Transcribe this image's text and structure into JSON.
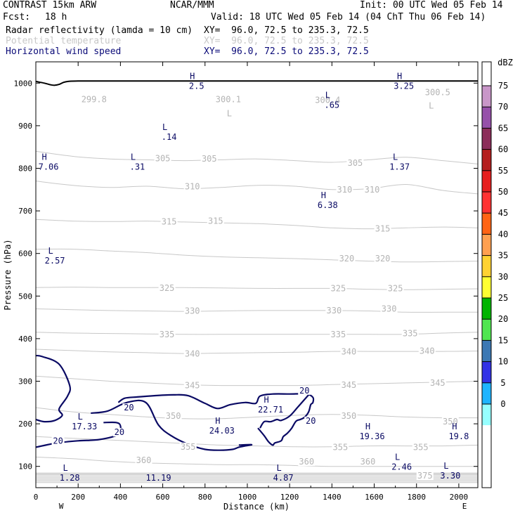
{
  "header": {
    "model": "CONTRAST 15km ARW",
    "center": "NCAR/MMM",
    "init": "Init: 00 UTC Wed 05 Feb 14",
    "fcst_label": "Fcst:",
    "fcst_value": "18 h",
    "valid": "Valid: 18 UTC Wed 05 Feb 14 (04 ChT Thu 06 Feb 14)",
    "fields": [
      {
        "name": "Radar reflectivity (lamda = 10 cm)",
        "xy": "XY=  96.0, 72.5 to 235.3, 72.5",
        "color": "#000000"
      },
      {
        "name": "Potential temperature",
        "xy": "XY=  96.0, 72.5 to 235.3, 72.5",
        "color": "#c8c8c8"
      },
      {
        "name": "Horizontal wind speed",
        "xy": "XY=  96.0, 72.5 to 235.3, 72.5",
        "color": "#0a0a78"
      }
    ]
  },
  "chart_data": {
    "type": "cross-section",
    "xlabel": "Distance (km)",
    "ylabel": "Pressure (hPa)",
    "xlim": [
      0,
      2090
    ],
    "ylim": [
      1050,
      50
    ],
    "x_ticks": [
      "0",
      "200",
      "400",
      "600",
      "800",
      "1000",
      "1200",
      "1400",
      "1600",
      "1800",
      "2000"
    ],
    "y_ticks": [
      "100",
      "200",
      "300",
      "400",
      "500",
      "600",
      "700",
      "800",
      "900",
      "1000"
    ],
    "endpoints": [
      "W",
      "E"
    ],
    "theta_contours": [
      {
        "theta": 305,
        "p": [
          840,
          828,
          822,
          820,
          818,
          820,
          822,
          818,
          814,
          820,
          826,
          818,
          810
        ]
      },
      {
        "theta": 310,
        "p": [
          770,
          760,
          755,
          758,
          752,
          755,
          760,
          758,
          750,
          752,
          762,
          748,
          740
        ]
      },
      {
        "theta": 315,
        "p": [
          680,
          676,
          675,
          676,
          674,
          672,
          670,
          666,
          660,
          658,
          660,
          662,
          660
        ]
      },
      {
        "theta": 320,
        "p": [
          610,
          610,
          606,
          602,
          596,
          592,
          590,
          588,
          585,
          582,
          580,
          581,
          582
        ]
      },
      {
        "theta": 325,
        "p": [
          520,
          521,
          520,
          520,
          520,
          519,
          518,
          518,
          518,
          516,
          515,
          516,
          517
        ]
      },
      {
        "theta": 330,
        "p": [
          470,
          468,
          466,
          465,
          464,
          465,
          466,
          466,
          466,
          465,
          462,
          462,
          462
        ]
      },
      {
        "theta": 335,
        "p": [
          415,
          413,
          412,
          411,
          410,
          410,
          410,
          410,
          410,
          410,
          410,
          413,
          415
        ]
      },
      {
        "theta": 340,
        "p": [
          375,
          372,
          369,
          367,
          365,
          366,
          367,
          368,
          370,
          370,
          370,
          370,
          371
        ]
      },
      {
        "theta": 345,
        "p": [
          312,
          306,
          300,
          296,
          292,
          290,
          290,
          290,
          292,
          294,
          296,
          298,
          300
        ]
      },
      {
        "theta": 350,
        "p": [
          238,
          228,
          222,
          216,
          212,
          212,
          216,
          220,
          222,
          220,
          216,
          214,
          214
        ]
      },
      {
        "theta": 355,
        "p": [
          170,
          166,
          162,
          158,
          154,
          150,
          148,
          146,
          146,
          148,
          148,
          148,
          150
        ]
      },
      {
        "theta": 360,
        "p": [
          122,
          118,
          112,
          108,
          106,
          104,
          104,
          102,
          100,
          100,
          100,
          100,
          100
        ]
      },
      {
        "theta": 375,
        "p": [
          82,
          82,
          82,
          82,
          82,
          82,
          82,
          82,
          82,
          82,
          82,
          82,
          82
        ]
      }
    ],
    "theta_contour_x": [
      0,
      175,
      350,
      525,
      700,
      875,
      1050,
      1225,
      1400,
      1575,
      1750,
      1925,
      2090
    ],
    "theta_labels": [
      {
        "text": "375",
        "x": 1840,
        "y": 78
      },
      {
        "text": "360",
        "x": 510,
        "y": 114
      },
      {
        "text": "360",
        "x": 1280,
        "y": 111
      },
      {
        "text": "360",
        "x": 1570,
        "y": 111
      },
      {
        "text": "355",
        "x": 720,
        "y": 146
      },
      {
        "text": "355",
        "x": 1440,
        "y": 145
      },
      {
        "text": "355",
        "x": 1820,
        "y": 145
      },
      {
        "text": "350",
        "x": 650,
        "y": 218
      },
      {
        "text": "350",
        "x": 1480,
        "y": 218
      },
      {
        "text": "350",
        "x": 1960,
        "y": 205
      },
      {
        "text": "345",
        "x": 740,
        "y": 290
      },
      {
        "text": "345",
        "x": 1480,
        "y": 291
      },
      {
        "text": "345",
        "x": 1900,
        "y": 296
      },
      {
        "text": "340",
        "x": 740,
        "y": 364
      },
      {
        "text": "340",
        "x": 1480,
        "y": 369
      },
      {
        "text": "340",
        "x": 1850,
        "y": 371
      },
      {
        "text": "335",
        "x": 620,
        "y": 410
      },
      {
        "text": "335",
        "x": 1430,
        "y": 410
      },
      {
        "text": "335",
        "x": 1770,
        "y": 412
      },
      {
        "text": "330",
        "x": 740,
        "y": 465
      },
      {
        "text": "330",
        "x": 1410,
        "y": 466
      },
      {
        "text": "330",
        "x": 1670,
        "y": 470
      },
      {
        "text": "325",
        "x": 620,
        "y": 519
      },
      {
        "text": "325",
        "x": 1430,
        "y": 518
      },
      {
        "text": "325",
        "x": 1700,
        "y": 518
      },
      {
        "text": "320",
        "x": 1470,
        "y": 588
      },
      {
        "text": "320",
        "x": 1640,
        "y": 588
      },
      {
        "text": "315",
        "x": 630,
        "y": 675
      },
      {
        "text": "315",
        "x": 850,
        "y": 676
      },
      {
        "text": "315",
        "x": 1640,
        "y": 658
      },
      {
        "text": "310",
        "x": 740,
        "y": 757
      },
      {
        "text": "310",
        "x": 1460,
        "y": 750
      },
      {
        "text": "310",
        "x": 1590,
        "y": 750
      },
      {
        "text": "305",
        "x": 600,
        "y": 823
      },
      {
        "text": "305",
        "x": 820,
        "y": 822
      },
      {
        "text": "305",
        "x": 1510,
        "y": 812
      }
    ],
    "surface_theta": [
      {
        "text": "299.8",
        "x": 275,
        "y": 962
      },
      {
        "text": "300.1",
        "x": 910,
        "y": 962
      },
      {
        "text": "300.4",
        "x": 1380,
        "y": 960
      },
      {
        "text": "300.5",
        "x": 1900,
        "y": 978
      }
    ],
    "surface_extrema": [
      {
        "type": "L",
        "x": 1870,
        "y": 940
      },
      {
        "type": "L",
        "x": 915,
        "y": 922
      }
    ],
    "wind_extrema": [
      {
        "type": "L",
        "value": "1.28",
        "x": 160,
        "y": 80
      },
      {
        "type": "",
        "value": "11.19",
        "x": 580,
        "y": 80
      },
      {
        "type": "L",
        "value": "4.87",
        "x": 1170,
        "y": 80
      },
      {
        "type": "L",
        "value": "2.46",
        "x": 1730,
        "y": 105
      },
      {
        "type": "L",
        "value": "3.30",
        "x": 1960,
        "y": 85
      },
      {
        "type": "L",
        "value": "17.33",
        "x": 230,
        "y": 200
      },
      {
        "type": "H",
        "value": "24.03",
        "x": 880,
        "y": 190
      },
      {
        "type": "H",
        "value": "22.71",
        "x": 1110,
        "y": 240
      },
      {
        "type": "H",
        "value": "19.36",
        "x": 1590,
        "y": 177
      },
      {
        "type": "H",
        "value": "19.8",
        "x": 2000,
        "y": 177
      },
      {
        "type": "L",
        "value": "2.57",
        "x": 90,
        "y": 590
      },
      {
        "type": "H",
        "value": "6.38",
        "x": 1380,
        "y": 720
      },
      {
        "type": "H",
        "value": "7.06",
        "x": 60,
        "y": 810
      },
      {
        "type": "L",
        "value": ".31",
        "x": 480,
        "y": 810
      },
      {
        "type": "L",
        "value": "1.37",
        "x": 1720,
        "y": 810
      },
      {
        "type": "L",
        "value": ".14",
        "x": 630,
        "y": 880
      },
      {
        "type": "L",
        "value": ".65",
        "x": 1400,
        "y": 955
      },
      {
        "type": "H",
        "value": "2.5",
        "x": 760,
        "y": 1000
      },
      {
        "type": "H",
        "value": "3.25",
        "x": 1740,
        "y": 1000
      }
    ],
    "wind_contour_labels": [
      {
        "text": "20",
        "x": 105,
        "y": 160
      },
      {
        "text": "20",
        "x": 395,
        "y": 180
      },
      {
        "text": "20",
        "x": 440,
        "y": 238
      },
      {
        "text": "20",
        "x": 1300,
        "y": 207
      },
      {
        "text": "20",
        "x": 1270,
        "y": 278
      }
    ],
    "wind_contours": [
      {
        "x": [
          0,
          100,
          200,
          300,
          390,
          400,
          380,
          320
        ],
        "p": [
          145,
          155,
          160,
          163,
          175,
          195,
          203,
          203
        ]
      },
      {
        "x": [
          0,
          40,
          90,
          125,
          110,
          150,
          160,
          110,
          30,
          0
        ],
        "p": [
          210,
          205,
          208,
          220,
          235,
          265,
          290,
          340,
          358,
          360
        ]
      },
      {
        "x": [
          260,
          340,
          430,
          520,
          580,
          640,
          720,
          800,
          870,
          930,
          960,
          990,
          1020,
          960
        ],
        "p": [
          225,
          230,
          250,
          250,
          197,
          172,
          152,
          140,
          138,
          140,
          145,
          148,
          151,
          150
        ]
      },
      {
        "x": [
          390,
          420,
          480,
          560,
          650,
          720,
          800,
          860,
          920,
          990,
          1040,
          1060,
          1120,
          1200,
          1280,
          1310,
          1310,
          1300,
          1290,
          1270,
          1250,
          1230,
          1210,
          1190,
          1170,
          1160,
          1130,
          1120,
          1100,
          1080,
          1050
        ],
        "p": [
          250,
          260,
          263,
          266,
          268,
          266,
          248,
          236,
          245,
          250,
          248,
          265,
          270,
          270,
          270,
          262,
          250,
          245,
          228,
          215,
          210,
          206,
          190,
          178,
          170,
          160,
          155,
          150,
          158,
          172,
          190
        ]
      },
      {
        "x": [
          1060,
          1080,
          1110,
          1140,
          1160,
          1200,
          1240,
          1290
        ],
        "p": [
          190,
          205,
          205,
          210,
          208,
          218,
          240,
          268
        ]
      }
    ],
    "terrain": {
      "x": [
        0,
        40,
        70,
        90,
        110,
        140,
        200,
        400,
        800,
        1400,
        2090
      ],
      "p": [
        1004,
        1000,
        996,
        995,
        997,
        1003,
        1005,
        1005,
        1005,
        1005,
        1005
      ]
    },
    "colorbar": {
      "title": "dBZ",
      "labels": [
        "75",
        "70",
        "65",
        "60",
        "55",
        "50",
        "45",
        "40",
        "35",
        "30",
        "25",
        "20",
        "15",
        "10",
        "5",
        "0"
      ],
      "colors": [
        "#c896c8",
        "#9650aa",
        "#8c2d5a",
        "#b41e1e",
        "#e61e1e",
        "#ff3232",
        "#ff6414",
        "#ffa050",
        "#ffd232",
        "#ffff32",
        "#00b400",
        "#50e650",
        "#3c78b4",
        "#3232e6",
        "#1eb4ff",
        "#96ffff"
      ],
      "unit_colors": {
        "top": "#ffffff",
        "bottom": "#ffffff"
      }
    }
  }
}
